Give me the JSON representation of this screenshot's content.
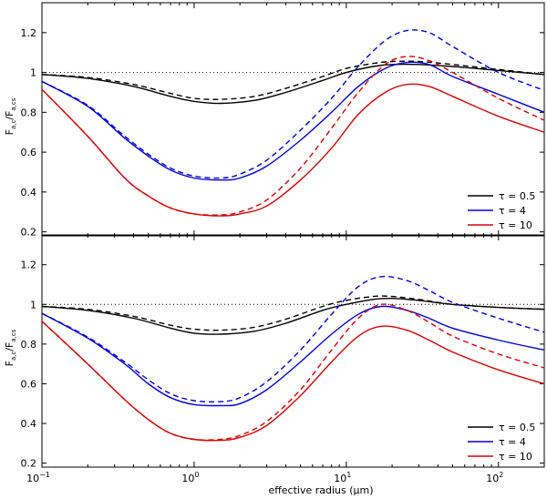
{
  "figure": {
    "xlabel": "effective radius (μm)",
    "ylabel_main": "F",
    "ylabel_sub1": "a,c",
    "ylabel_mid": "/F",
    "ylabel_sub2": "a,cs",
    "xtick_labels": [
      {
        "base": "10",
        "exp": "−1",
        "v": 0.1
      },
      {
        "base": "10",
        "exp": "0",
        "v": 1
      },
      {
        "base": "10",
        "exp": "1",
        "v": 10
      },
      {
        "base": "10",
        "exp": "2",
        "v": 100
      }
    ]
  },
  "chart_data": [
    {
      "type": "line",
      "panel": "top",
      "xscale": "log",
      "xlim": [
        0.1,
        200
      ],
      "ylim": [
        0.18,
        1.35
      ],
      "yticks": [
        0.2,
        0.4,
        0.6,
        0.8,
        1,
        1.2
      ],
      "ytick_labels": [
        "0.2",
        "0.4",
        "0.6",
        "0.8",
        "1",
        "1.2"
      ],
      "reference_line": {
        "y": 1,
        "style": "dotted"
      },
      "legend": {
        "position": "bottom-right",
        "entries": [
          {
            "label": "τ = 0.5",
            "color": "#000000"
          },
          {
            "label": "τ = 4",
            "color": "#0000dd"
          },
          {
            "label": "τ = 10",
            "color": "#dd0000"
          }
        ]
      },
      "series": [
        {
          "name": "τ = 0.5 (solid)",
          "color": "#000000",
          "dash": "solid",
          "x": [
            0.1,
            0.2,
            0.4,
            0.7,
            1,
            1.5,
            2.5,
            4,
            7,
            10,
            15,
            20,
            30,
            50,
            100,
            200
          ],
          "y": [
            0.99,
            0.97,
            0.93,
            0.88,
            0.855,
            0.845,
            0.86,
            0.9,
            0.96,
            1.0,
            1.03,
            1.04,
            1.04,
            1.03,
            1.01,
            0.99
          ]
        },
        {
          "name": "τ = 0.5 (dashed)",
          "color": "#000000",
          "dash": "dashed",
          "x": [
            0.1,
            0.2,
            0.4,
            0.7,
            1,
            1.5,
            2.5,
            4,
            7,
            10,
            15,
            20,
            30,
            50,
            100,
            200
          ],
          "y": [
            0.99,
            0.975,
            0.94,
            0.895,
            0.87,
            0.865,
            0.88,
            0.92,
            0.98,
            1.02,
            1.045,
            1.055,
            1.055,
            1.04,
            1.015,
            0.99
          ]
        },
        {
          "name": "τ = 4 (solid)",
          "color": "#0000dd",
          "dash": "solid",
          "x": [
            0.1,
            0.2,
            0.35,
            0.5,
            0.7,
            1,
            1.5,
            2,
            3,
            5,
            8,
            12,
            18,
            25,
            35,
            50,
            100,
            200
          ],
          "y": [
            0.955,
            0.83,
            0.67,
            0.58,
            0.51,
            0.47,
            0.46,
            0.47,
            0.53,
            0.66,
            0.8,
            0.93,
            1.02,
            1.05,
            1.04,
            0.98,
            0.89,
            0.8
          ]
        },
        {
          "name": "τ = 4 (dashed)",
          "color": "#0000dd",
          "dash": "dashed",
          "x": [
            0.1,
            0.2,
            0.35,
            0.5,
            0.7,
            1,
            1.5,
            2,
            3,
            5,
            8,
            12,
            18,
            25,
            35,
            50,
            100,
            200
          ],
          "y": [
            0.955,
            0.835,
            0.68,
            0.59,
            0.52,
            0.48,
            0.47,
            0.49,
            0.56,
            0.71,
            0.87,
            1.03,
            1.16,
            1.21,
            1.2,
            1.13,
            1.0,
            0.91
          ]
        },
        {
          "name": "τ = 10 (solid)",
          "color": "#dd0000",
          "dash": "solid",
          "x": [
            0.1,
            0.2,
            0.35,
            0.5,
            0.7,
            1,
            1.5,
            2,
            3,
            5,
            8,
            12,
            18,
            25,
            35,
            50,
            100,
            200
          ],
          "y": [
            0.915,
            0.68,
            0.47,
            0.38,
            0.32,
            0.29,
            0.28,
            0.29,
            0.33,
            0.46,
            0.62,
            0.79,
            0.9,
            0.94,
            0.93,
            0.88,
            0.78,
            0.7
          ]
        },
        {
          "name": "τ = 10 (dashed)",
          "color": "#dd0000",
          "dash": "dashed",
          "x": [
            0.1,
            0.2,
            0.35,
            0.5,
            0.7,
            1,
            1.5,
            2,
            3,
            5,
            8,
            12,
            18,
            25,
            35,
            50,
            100,
            200
          ],
          "y": [
            0.915,
            0.68,
            0.47,
            0.38,
            0.32,
            0.29,
            0.285,
            0.3,
            0.36,
            0.52,
            0.72,
            0.9,
            1.04,
            1.08,
            1.06,
            1.0,
            0.87,
            0.76
          ]
        }
      ]
    },
    {
      "type": "line",
      "panel": "bottom",
      "xscale": "log",
      "xlim": [
        0.1,
        200
      ],
      "ylim": [
        0.18,
        1.35
      ],
      "yticks": [
        0.2,
        0.4,
        0.6,
        0.8,
        1,
        1.2
      ],
      "ytick_labels": [
        "0.2",
        "0.4",
        "0.6",
        "0.8",
        "1",
        "1.2"
      ],
      "reference_line": {
        "y": 1,
        "style": "dotted"
      },
      "legend": {
        "position": "bottom-right",
        "entries": [
          {
            "label": "τ = 0.5",
            "color": "#000000"
          },
          {
            "label": "τ = 4",
            "color": "#0000dd"
          },
          {
            "label": "τ = 10",
            "color": "#dd0000"
          }
        ]
      },
      "series": [
        {
          "name": "τ = 0.5 (solid)",
          "color": "#000000",
          "dash": "solid",
          "x": [
            0.1,
            0.2,
            0.4,
            0.7,
            1,
            1.5,
            2.5,
            4,
            7,
            10,
            15,
            20,
            30,
            50,
            100,
            200
          ],
          "y": [
            0.99,
            0.97,
            0.93,
            0.88,
            0.855,
            0.85,
            0.865,
            0.905,
            0.97,
            1.0,
            1.025,
            1.03,
            1.02,
            1.0,
            0.985,
            0.975
          ]
        },
        {
          "name": "τ = 0.5 (dashed)",
          "color": "#000000",
          "dash": "dashed",
          "x": [
            0.1,
            0.2,
            0.4,
            0.7,
            1,
            1.5,
            2.5,
            4,
            7,
            10,
            15,
            20,
            30,
            50,
            100,
            200
          ],
          "y": [
            0.99,
            0.975,
            0.94,
            0.895,
            0.875,
            0.87,
            0.885,
            0.925,
            0.99,
            1.02,
            1.04,
            1.04,
            1.025,
            1.0,
            0.985,
            0.975
          ]
        },
        {
          "name": "τ = 4 (solid)",
          "color": "#0000dd",
          "dash": "solid",
          "x": [
            0.1,
            0.2,
            0.35,
            0.5,
            0.7,
            1,
            1.5,
            2,
            3,
            5,
            8,
            12,
            17,
            25,
            35,
            50,
            100,
            200
          ],
          "y": [
            0.955,
            0.83,
            0.7,
            0.6,
            0.53,
            0.495,
            0.49,
            0.5,
            0.57,
            0.71,
            0.85,
            0.95,
            0.99,
            0.97,
            0.93,
            0.88,
            0.82,
            0.77
          ]
        },
        {
          "name": "τ = 4 (dashed)",
          "color": "#0000dd",
          "dash": "dashed",
          "x": [
            0.1,
            0.2,
            0.35,
            0.5,
            0.7,
            1,
            1.5,
            2,
            3,
            5,
            8,
            12,
            17,
            25,
            35,
            50,
            100,
            200
          ],
          "y": [
            0.955,
            0.835,
            0.71,
            0.62,
            0.55,
            0.515,
            0.51,
            0.53,
            0.61,
            0.77,
            0.95,
            1.09,
            1.14,
            1.12,
            1.07,
            1.01,
            0.93,
            0.86
          ]
        },
        {
          "name": "τ = 10 (solid)",
          "color": "#dd0000",
          "dash": "solid",
          "x": [
            0.1,
            0.2,
            0.35,
            0.5,
            0.7,
            1,
            1.5,
            2,
            3,
            5,
            8,
            12,
            17,
            25,
            35,
            50,
            100,
            200
          ],
          "y": [
            0.915,
            0.7,
            0.52,
            0.42,
            0.35,
            0.32,
            0.315,
            0.33,
            0.39,
            0.54,
            0.71,
            0.84,
            0.89,
            0.87,
            0.82,
            0.76,
            0.67,
            0.6
          ]
        },
        {
          "name": "τ = 10 (dashed)",
          "color": "#dd0000",
          "dash": "dashed",
          "x": [
            0.1,
            0.2,
            0.35,
            0.5,
            0.7,
            1,
            1.5,
            2,
            3,
            5,
            8,
            12,
            17,
            25,
            35,
            50,
            100,
            200
          ],
          "y": [
            0.915,
            0.7,
            0.52,
            0.42,
            0.35,
            0.32,
            0.32,
            0.34,
            0.41,
            0.57,
            0.77,
            0.93,
            1.0,
            0.97,
            0.91,
            0.84,
            0.75,
            0.68
          ]
        }
      ]
    }
  ]
}
